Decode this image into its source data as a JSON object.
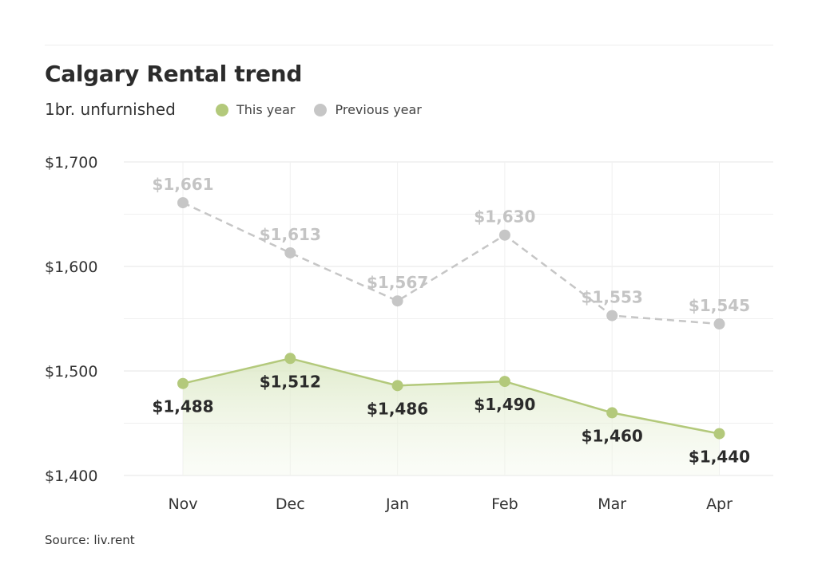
{
  "header": {
    "title": "Calgary Rental trend",
    "subtitle": "1br. unfurnished"
  },
  "legend": {
    "this_year": "This year",
    "previous_year": "Previous year"
  },
  "footer": {
    "source": "Source: liv.rent"
  },
  "colors": {
    "this_year": "#b3c97b",
    "previous_year": "#c6c6c6"
  },
  "chart_data": {
    "type": "line",
    "title": "Calgary Rental trend",
    "subtitle": "1br. unfurnished",
    "categories": [
      "Nov",
      "Dec",
      "Jan",
      "Feb",
      "Mar",
      "Apr"
    ],
    "ylim": [
      1400,
      1700
    ],
    "yticks": [
      1400,
      1500,
      1600,
      1700
    ],
    "ytick_labels": [
      "$1,400",
      "$1,500",
      "$1,600",
      "$1,700"
    ],
    "grid": true,
    "legend_position": "top",
    "series": [
      {
        "name": "This year",
        "values": [
          1488,
          1512,
          1486,
          1490,
          1460,
          1440
        ],
        "labels": [
          "$1,488",
          "$1,512",
          "$1,486",
          "$1,490",
          "$1,460",
          "$1,440"
        ],
        "style": "solid-area"
      },
      {
        "name": "Previous year",
        "values": [
          1661,
          1613,
          1567,
          1630,
          1553,
          1545
        ],
        "labels": [
          "$1,661",
          "$1,613",
          "$1,567",
          "$1,630",
          "$1,553",
          "$1,545"
        ],
        "style": "dashed"
      }
    ]
  }
}
